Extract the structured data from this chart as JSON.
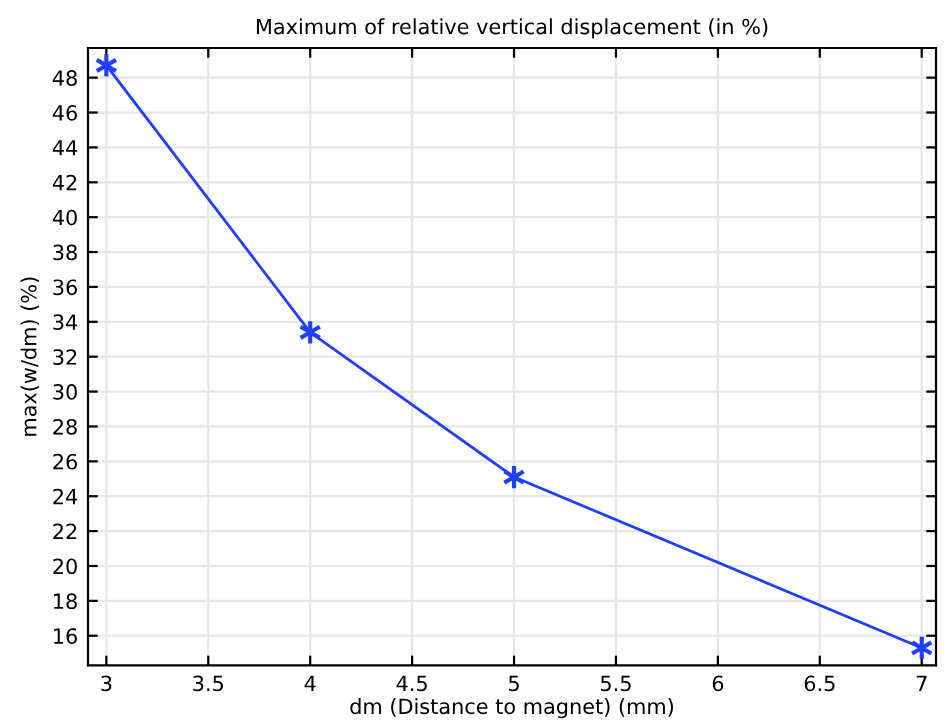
{
  "chart_data": {
    "type": "line",
    "title": "Maximum of relative vertical displacement (in %)",
    "xlabel": "dm (Distance to magnet) (mm)",
    "ylabel": "max(w/dm) (%)",
    "x": [
      3,
      4,
      5,
      7
    ],
    "series": [
      {
        "color": "#1f3fff",
        "values": [
          48.7,
          33.4,
          25.1,
          15.3
        ]
      }
    ],
    "xlim": [
      2.91,
      7.07
    ],
    "xticks": [
      3,
      3.5,
      4,
      4.5,
      5,
      5.5,
      6,
      6.5,
      7
    ],
    "ylim": [
      14.3,
      49.7
    ],
    "yticks": [
      16,
      18,
      20,
      22,
      24,
      26,
      28,
      30,
      32,
      34,
      36,
      38,
      40,
      42,
      44,
      46,
      48
    ],
    "grid": true,
    "marker": "cross",
    "line_style": "solid"
  }
}
